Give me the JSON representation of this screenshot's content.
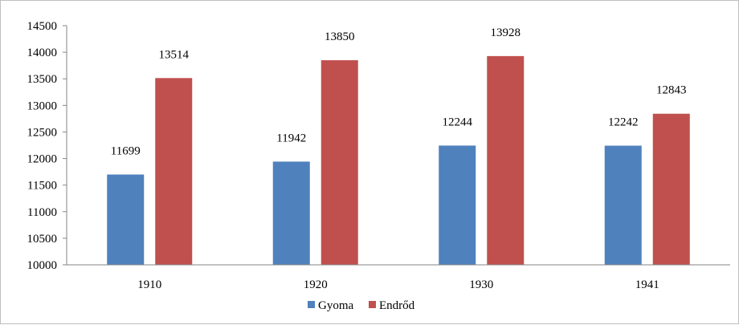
{
  "chart_data": {
    "type": "bar",
    "categories": [
      "1910",
      "1920",
      "1930",
      "1941"
    ],
    "series": [
      {
        "name": "Gyoma",
        "values": [
          11699,
          11942,
          12244,
          12242
        ],
        "color": "#4f81bd"
      },
      {
        "name": "Endrőd",
        "values": [
          13514,
          13850,
          13928,
          12843
        ],
        "color": "#c0504d"
      }
    ],
    "y_ticks": [
      "10000",
      "10500",
      "11000",
      "11500",
      "12000",
      "12500",
      "13000",
      "13500",
      "14000",
      "14500"
    ],
    "ylim": [
      10000,
      14500
    ],
    "grid": false,
    "legend_position": "bottom",
    "data_labels": true
  }
}
